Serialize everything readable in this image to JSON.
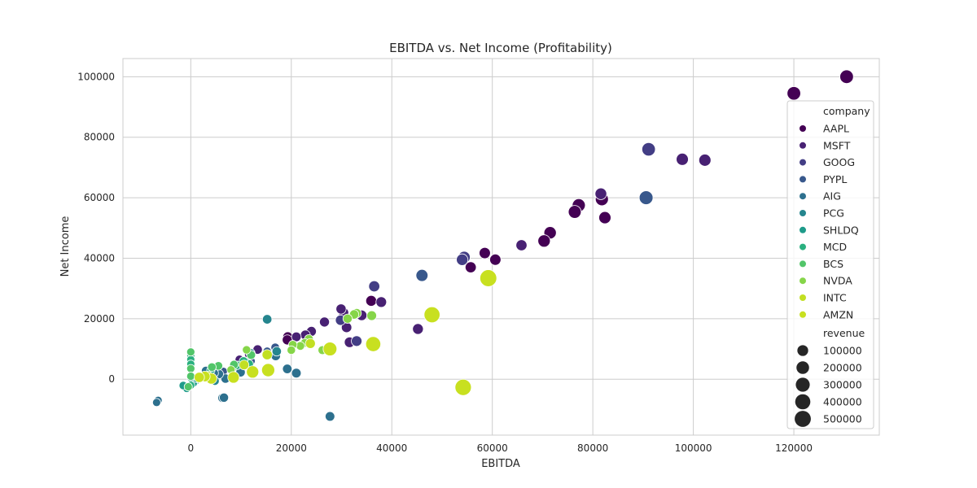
{
  "chart_data": {
    "type": "scatter",
    "title": "EBITDA vs. Net Income (Profitability)",
    "xlabel": "EBITDA",
    "ylabel": "Net Income",
    "xlim": [
      -13500,
      137000
    ],
    "ylim": [
      -18500,
      106000
    ],
    "xticks": [
      0,
      20000,
      40000,
      60000,
      80000,
      100000,
      120000
    ],
    "yticks": [
      0,
      20000,
      40000,
      60000,
      80000,
      100000
    ],
    "grid": true,
    "legend_position": "right",
    "hue_title": "company",
    "size_title": "revenue",
    "size_legend": [
      100000,
      200000,
      300000,
      400000,
      500000
    ],
    "series": [
      {
        "name": "AAPL",
        "color": "#440154",
        "points": [
          {
            "x": 130500,
            "y": 100000,
            "r": 265000
          },
          {
            "x": 120000,
            "y": 94500,
            "r": 265000
          },
          {
            "x": 81800,
            "y": 59500,
            "r": 225000
          },
          {
            "x": 82400,
            "y": 53400,
            "r": 170000
          },
          {
            "x": 77200,
            "y": 57500,
            "r": 229000
          },
          {
            "x": 76400,
            "y": 55300,
            "r": 215000
          },
          {
            "x": 71500,
            "y": 48400,
            "r": 182000
          },
          {
            "x": 70300,
            "y": 45700,
            "r": 182000
          },
          {
            "x": 60600,
            "y": 39500,
            "r": 120000
          },
          {
            "x": 58500,
            "y": 41700,
            "r": 120000
          },
          {
            "x": 55700,
            "y": 37000,
            "r": 110000
          },
          {
            "x": 35900,
            "y": 25900,
            "r": 100000
          },
          {
            "x": 19300,
            "y": 14000,
            "r": 65000
          },
          {
            "x": 19200,
            "y": 13000,
            "r": 65000
          }
        ]
      },
      {
        "name": "MSFT",
        "color": "#482173",
        "points": [
          {
            "x": 97800,
            "y": 72700,
            "r": 168000
          },
          {
            "x": 102300,
            "y": 72400,
            "r": 168000
          },
          {
            "x": 81600,
            "y": 61300,
            "r": 143000
          },
          {
            "x": 65800,
            "y": 44300,
            "r": 110000
          },
          {
            "x": 45200,
            "y": 16600,
            "r": 96000
          },
          {
            "x": 37900,
            "y": 25500,
            "r": 90000
          },
          {
            "x": 34000,
            "y": 21100,
            "r": 86000
          },
          {
            "x": 31600,
            "y": 12200,
            "r": 85000
          },
          {
            "x": 31000,
            "y": 17100,
            "r": 78000
          },
          {
            "x": 30400,
            "y": 22000,
            "r": 74000
          },
          {
            "x": 29900,
            "y": 23200,
            "r": 70000
          },
          {
            "x": 26600,
            "y": 18900,
            "r": 62000
          },
          {
            "x": 24000,
            "y": 15800,
            "r": 60000
          },
          {
            "x": 22800,
            "y": 14600,
            "r": 58000
          },
          {
            "x": 21000,
            "y": 14000,
            "r": 51000
          },
          {
            "x": 13300,
            "y": 9800,
            "r": 44000
          },
          {
            "x": 11600,
            "y": 8200,
            "r": 36000
          },
          {
            "x": 9700,
            "y": 6500,
            "r": 30000
          },
          {
            "x": 5100,
            "y": 3900,
            "r": 23000
          }
        ]
      },
      {
        "name": "GOOG",
        "color": "#433e85",
        "points": [
          {
            "x": 91100,
            "y": 76000,
            "r": 257000
          },
          {
            "x": 54400,
            "y": 40300,
            "r": 160000
          },
          {
            "x": 54000,
            "y": 39500,
            "r": 137000
          },
          {
            "x": 36500,
            "y": 30700,
            "r": 110000
          },
          {
            "x": 33000,
            "y": 12600,
            "r": 90000
          },
          {
            "x": 29800,
            "y": 19500,
            "r": 75000
          }
        ]
      },
      {
        "name": "PYPL",
        "color": "#38588c",
        "points": [
          {
            "x": 90600,
            "y": 60000,
            "r": 282000
          },
          {
            "x": 46000,
            "y": 34300,
            "r": 161000
          },
          {
            "x": 16800,
            "y": 10500,
            "r": 25000
          },
          {
            "x": 15200,
            "y": 9200,
            "r": 21000
          },
          {
            "x": 12000,
            "y": 6000,
            "r": 17000
          },
          {
            "x": 9000,
            "y": 4200,
            "r": 15000
          },
          {
            "x": 6500,
            "y": 2600,
            "r": 12000
          },
          {
            "x": 4800,
            "y": 1800,
            "r": 10000
          }
        ]
      },
      {
        "name": "AIG",
        "color": "#2d708e",
        "points": [
          {
            "x": 27700,
            "y": -12300,
            "r": 50000
          },
          {
            "x": 21000,
            "y": 2000,
            "r": 52000
          },
          {
            "x": 19200,
            "y": 3400,
            "r": 49000
          },
          {
            "x": 16900,
            "y": 7700,
            "r": 47000
          },
          {
            "x": 9900,
            "y": 2300,
            "r": 45000
          },
          {
            "x": 6900,
            "y": 200,
            "r": 40000
          },
          {
            "x": 6300,
            "y": -6200,
            "r": 40000
          },
          {
            "x": 6600,
            "y": -6100,
            "r": 38000
          },
          {
            "x": 5600,
            "y": 1700,
            "r": 38000
          },
          {
            "x": 4600,
            "y": 2000,
            "r": 35000
          },
          {
            "x": 3000,
            "y": 2800,
            "r": 30000
          },
          {
            "x": 2000,
            "y": 900,
            "r": 25000
          },
          {
            "x": -6500,
            "y": -7000,
            "r": 14000
          },
          {
            "x": -6800,
            "y": -7700,
            "r": 14000
          }
        ]
      },
      {
        "name": "PCG",
        "color": "#25858e",
        "points": [
          {
            "x": 15200,
            "y": 19800,
            "r": 45000
          },
          {
            "x": 17100,
            "y": 9200,
            "r": 42000
          },
          {
            "x": 11900,
            "y": 8600,
            "r": 35000
          },
          {
            "x": 10800,
            "y": 5800,
            "r": 30000
          },
          {
            "x": 4800,
            "y": -600,
            "r": 25000
          },
          {
            "x": 2400,
            "y": 600,
            "r": 20000
          }
        ]
      },
      {
        "name": "SHLDQ",
        "color": "#1e9b8a",
        "points": [
          {
            "x": 900,
            "y": -600,
            "r": 20000
          },
          {
            "x": -800,
            "y": -3000,
            "r": 20000
          },
          {
            "x": -1500,
            "y": -2100,
            "r": 18000
          },
          {
            "x": 500,
            "y": -1300,
            "r": 15000
          },
          {
            "x": 1200,
            "y": 200,
            "r": 15000
          },
          {
            "x": 0,
            "y": 500,
            "r": 12000
          }
        ]
      },
      {
        "name": "MCD",
        "color": "#2ab07f",
        "points": [
          {
            "x": 11600,
            "y": 5000,
            "r": 25000
          },
          {
            "x": 10500,
            "y": 6000,
            "r": 24000
          },
          {
            "x": 9200,
            "y": 4600,
            "r": 22000
          },
          {
            "x": 4000,
            "y": 3000,
            "r": 18000
          },
          {
            "x": 0,
            "y": 7800,
            "r": 12000
          },
          {
            "x": 0,
            "y": 6500,
            "r": 12000
          },
          {
            "x": 0,
            "y": 5000,
            "r": 12000
          },
          {
            "x": 0,
            "y": -2000,
            "r": 12000
          }
        ]
      },
      {
        "name": "BCS",
        "color": "#52c569",
        "points": [
          {
            "x": 12000,
            "y": 8000,
            "r": 30000
          },
          {
            "x": 8600,
            "y": 4800,
            "r": 25000
          },
          {
            "x": 5500,
            "y": 4400,
            "r": 22000
          },
          {
            "x": 4200,
            "y": 4000,
            "r": 22000
          },
          {
            "x": 0,
            "y": 9000,
            "r": 15000
          },
          {
            "x": 0,
            "y": 3500,
            "r": 15000
          },
          {
            "x": 0,
            "y": 1000,
            "r": 15000
          },
          {
            "x": -500,
            "y": -2500,
            "r": 15000
          }
        ]
      },
      {
        "name": "NVDA",
        "color": "#86d549",
        "points": [
          {
            "x": 36000,
            "y": 21000,
            "r": 55000
          },
          {
            "x": 33000,
            "y": 21800,
            "r": 45000
          },
          {
            "x": 32500,
            "y": 21400,
            "r": 42000
          },
          {
            "x": 31200,
            "y": 20000,
            "r": 40000
          },
          {
            "x": 26200,
            "y": 9600,
            "r": 30000
          },
          {
            "x": 23500,
            "y": 13300,
            "r": 27000
          },
          {
            "x": 22700,
            "y": 12000,
            "r": 26000
          },
          {
            "x": 21800,
            "y": 11000,
            "r": 24000
          },
          {
            "x": 20300,
            "y": 11400,
            "r": 22000
          },
          {
            "x": 20000,
            "y": 9600,
            "r": 20000
          },
          {
            "x": 11100,
            "y": 9700,
            "r": 18000
          },
          {
            "x": 8000,
            "y": 3100,
            "r": 15000
          }
        ]
      },
      {
        "name": "INTC",
        "color": "#c2df23",
        "points": [
          {
            "x": 23800,
            "y": 11800,
            "r": 62000
          },
          {
            "x": 15200,
            "y": 8100,
            "r": 71000
          },
          {
            "x": 10600,
            "y": 4700,
            "r": 55000
          },
          {
            "x": 3400,
            "y": 1000,
            "r": 54000
          }
        ]
      },
      {
        "name": "AMZN",
        "color": "#c8e020",
        "points": [
          {
            "x": 59200,
            "y": 33400,
            "r": 575000
          },
          {
            "x": 54200,
            "y": -2700,
            "r": 514000
          },
          {
            "x": 48000,
            "y": 21300,
            "r": 470000
          },
          {
            "x": 36300,
            "y": 11600,
            "r": 386000
          },
          {
            "x": 27700,
            "y": 10000,
            "r": 281000
          },
          {
            "x": 15400,
            "y": 3000,
            "r": 233000
          },
          {
            "x": 12300,
            "y": 2400,
            "r": 178000
          },
          {
            "x": 8500,
            "y": 600,
            "r": 136000
          },
          {
            "x": 4100,
            "y": 200,
            "r": 107000
          },
          {
            "x": 2800,
            "y": 900,
            "r": 89000
          },
          {
            "x": 1700,
            "y": 600,
            "r": 74000
          }
        ]
      }
    ]
  }
}
